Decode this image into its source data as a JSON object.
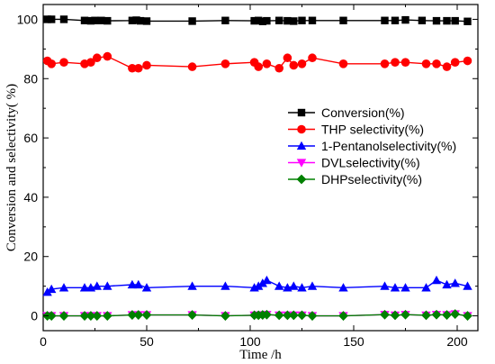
{
  "chart_data": {
    "type": "line",
    "title": "",
    "xlabel": "Time /h",
    "ylabel": "Conversion and selectivity( %)",
    "xlim": [
      0,
      210
    ],
    "ylim": [
      -5,
      105
    ],
    "xticks": [
      0,
      50,
      100,
      150,
      200
    ],
    "yticks": [
      0,
      20,
      40,
      60,
      80,
      100
    ],
    "grid": false,
    "legend_position": "center-right",
    "series": [
      {
        "name": "Conversion(%)",
        "color": "#000000",
        "marker": "square",
        "x": [
          2,
          4,
          10,
          20,
          23,
          25,
          28,
          31,
          43,
          45,
          47,
          50,
          72,
          88,
          102,
          104,
          106,
          108,
          114,
          118,
          121,
          125,
          130,
          145,
          165,
          170,
          175,
          183,
          190,
          195,
          199,
          205
        ],
        "y": [
          100,
          100,
          100,
          99.6,
          99.5,
          99.6,
          99.6,
          99.5,
          99.6,
          99.7,
          99.5,
          99.4,
          99.4,
          99.6,
          99.5,
          99.6,
          99.3,
          99.5,
          99.6,
          99.5,
          99.4,
          99.6,
          99.6,
          99.6,
          99.6,
          99.6,
          99.8,
          99.6,
          99.5,
          99.5,
          99.5,
          99.3
        ]
      },
      {
        "name": "THP selectivity(%)",
        "color": "#ff0000",
        "marker": "circle",
        "x": [
          2,
          4,
          10,
          20,
          23,
          26,
          31,
          43,
          46,
          50,
          72,
          88,
          102,
          104,
          108,
          114,
          118,
          121,
          125,
          130,
          145,
          165,
          170,
          175,
          185,
          190,
          195,
          199,
          205
        ],
        "y": [
          86,
          85,
          85.5,
          85,
          85.5,
          87,
          87.5,
          83.5,
          83.5,
          84.5,
          84,
          85,
          85.5,
          84,
          85,
          83.5,
          87,
          84.5,
          85,
          87,
          85,
          85,
          85.5,
          85.5,
          85,
          85,
          84,
          85.5,
          86
        ]
      },
      {
        "name": "1-Pentanolselectivity(%)",
        "color": "#0000ff",
        "marker": "triangle-up",
        "x": [
          2,
          4,
          10,
          20,
          23,
          26,
          31,
          43,
          46,
          50,
          72,
          88,
          102,
          104,
          106,
          108,
          114,
          118,
          121,
          125,
          130,
          145,
          165,
          170,
          175,
          185,
          190,
          195,
          199,
          205
        ],
        "y": [
          8,
          9,
          9.5,
          9.5,
          9.5,
          10,
          10,
          10.5,
          10.5,
          9.5,
          10,
          10,
          9.5,
          10,
          11,
          12,
          10,
          9.5,
          10,
          9.5,
          10,
          9.5,
          10,
          9.5,
          9.5,
          9.5,
          12,
          10.5,
          11,
          10
        ]
      },
      {
        "name": "DVLselectivity(%)",
        "color": "#ff00ff",
        "marker": "triangle-down",
        "x": [
          2,
          4,
          10,
          20,
          23,
          26,
          31,
          43,
          46,
          50,
          72,
          88,
          102,
          104,
          106,
          108,
          114,
          118,
          121,
          125,
          130,
          145,
          165,
          170,
          175,
          185,
          190,
          195,
          199,
          205
        ],
        "y": [
          0,
          0,
          0,
          0,
          0,
          0,
          0,
          0.3,
          0.3,
          0.3,
          0.3,
          0,
          0.2,
          0.2,
          0.3,
          0.4,
          0.2,
          0.2,
          0.2,
          0.2,
          0,
          0,
          0.4,
          0.2,
          0.4,
          0.2,
          0.4,
          0.3,
          0.6,
          0
        ]
      },
      {
        "name": "DHPselectivity(%)",
        "color": "#008000",
        "marker": "diamond",
        "x": [
          2,
          4,
          10,
          20,
          23,
          26,
          31,
          43,
          46,
          50,
          72,
          88,
          102,
          104,
          106,
          108,
          114,
          118,
          121,
          125,
          130,
          145,
          165,
          170,
          175,
          185,
          190,
          195,
          199,
          205
        ],
        "y": [
          0,
          0,
          0,
          0,
          0,
          0,
          0,
          0.3,
          0.3,
          0.3,
          0.3,
          0,
          0.2,
          0.2,
          0.3,
          0.4,
          0.2,
          0.2,
          0.2,
          0.2,
          0,
          0,
          0.4,
          0.2,
          0.4,
          0.2,
          0.4,
          0.3,
          0.6,
          0
        ]
      }
    ]
  }
}
